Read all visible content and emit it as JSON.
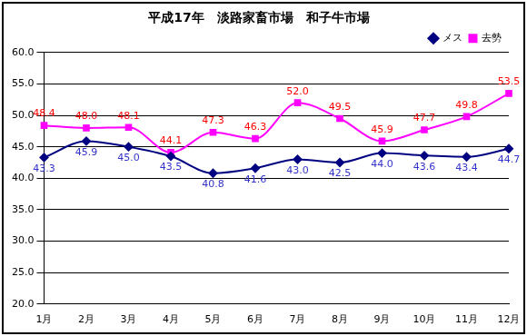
{
  "chart_data": {
    "type": "line",
    "title": "平成17年　淡路家畜市場　和子牛市場",
    "categories": [
      "1月",
      "2月",
      "3月",
      "4月",
      "5月",
      "6月",
      "7月",
      "8月",
      "9月",
      "10月",
      "11月",
      "12月"
    ],
    "series": [
      {
        "name": "メス",
        "color": "#000080",
        "marker": "diamond",
        "line_style": "solid",
        "values": [
          43.3,
          45.9,
          45.0,
          43.5,
          40.8,
          41.6,
          43.0,
          42.5,
          44.0,
          43.6,
          43.4,
          44.7
        ],
        "value_labels": [
          "43.3",
          "45.9",
          "45.0",
          "43.5",
          "40.8",
          "41.6",
          "43.0",
          "42.5",
          "44.0",
          "43.6",
          "43.4",
          "44.7"
        ]
      },
      {
        "name": "去勢",
        "color": "#ff00ff",
        "marker": "square",
        "line_style": "solid",
        "values": [
          48.4,
          48.0,
          48.1,
          44.1,
          47.3,
          46.3,
          52.0,
          49.5,
          45.9,
          47.7,
          49.8,
          53.5
        ],
        "value_labels": [
          "48.4",
          "48.0",
          "48.1",
          "44.1",
          "47.3",
          "46.3",
          "52.0",
          "49.5",
          "45.9",
          "47.7",
          "49.8",
          "53.5"
        ]
      }
    ],
    "ylim": [
      20,
      60
    ],
    "yticks": [
      {
        "value": 20,
        "label": "20.0"
      },
      {
        "value": 25,
        "label": "25.0"
      },
      {
        "value": 30,
        "label": "30.0"
      },
      {
        "value": 35,
        "label": "35.0"
      },
      {
        "value": 40,
        "label": "40.0"
      },
      {
        "value": 45,
        "label": "45.0"
      },
      {
        "value": 50,
        "label": "50.0"
      },
      {
        "value": 55,
        "label": "55.0"
      },
      {
        "value": 60,
        "label": "60.0"
      }
    ],
    "grid": true,
    "legend": "upper right",
    "data_labels": true
  }
}
